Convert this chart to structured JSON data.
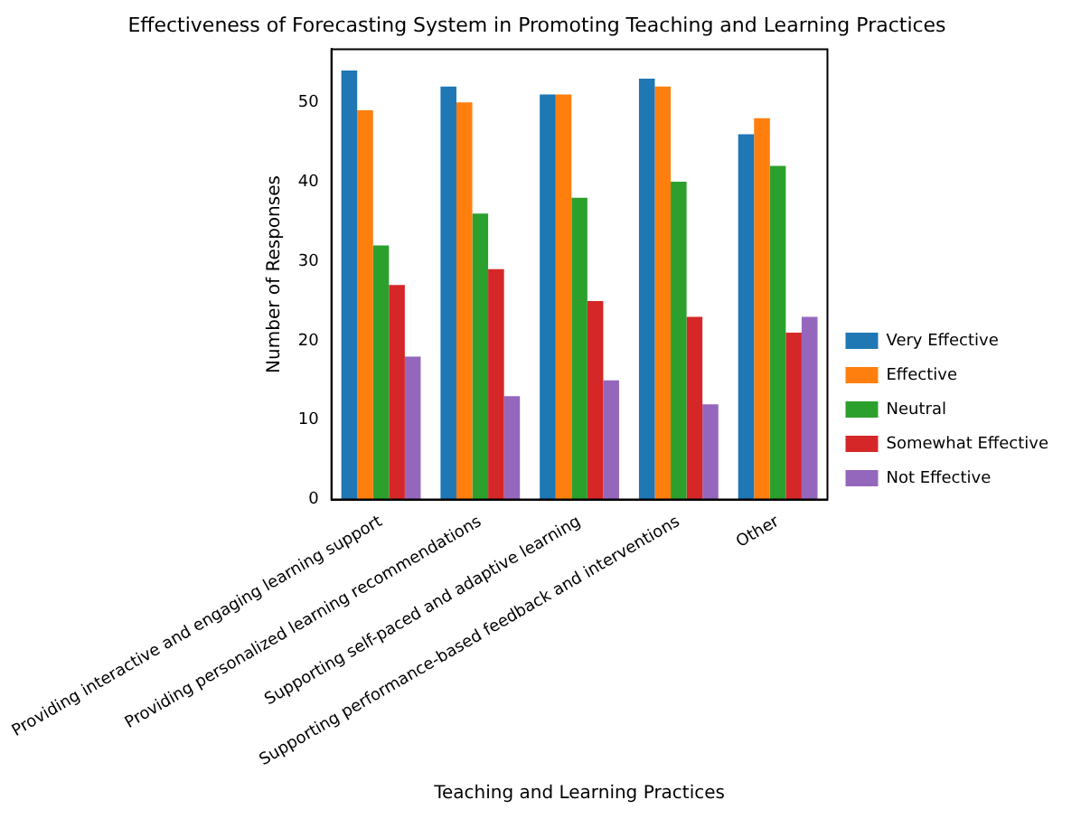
{
  "chart_data": {
    "type": "bar",
    "title": "Effectiveness of Forecasting System in Promoting Teaching and Learning Practices",
    "xlabel": "Teaching and Learning Practices",
    "ylabel": "Number of Responses",
    "categories": [
      "Providing interactive and engaging learning support",
      "Providing personalized learning recommendations",
      "Supporting self-paced and adaptive learning",
      "Supporting performance-based feedback and interventions",
      "Other"
    ],
    "series": [
      {
        "name": "Very Effective",
        "color": "#1f77b4",
        "values": [
          54,
          52,
          51,
          53,
          46
        ]
      },
      {
        "name": "Effective",
        "color": "#ff7f0e",
        "values": [
          49,
          50,
          51,
          52,
          48
        ]
      },
      {
        "name": "Neutral",
        "color": "#2ca02c",
        "values": [
          32,
          36,
          38,
          40,
          42
        ]
      },
      {
        "name": "Somewhat Effective",
        "color": "#d62728",
        "values": [
          27,
          29,
          25,
          23,
          21
        ]
      },
      {
        "name": "Not Effective",
        "color": "#9467bd",
        "values": [
          18,
          13,
          15,
          12,
          23
        ]
      }
    ],
    "ylim": [
      0,
      56.7
    ],
    "yticks": [
      0,
      10,
      20,
      30,
      40,
      50
    ],
    "grid": false,
    "legend": "right"
  }
}
